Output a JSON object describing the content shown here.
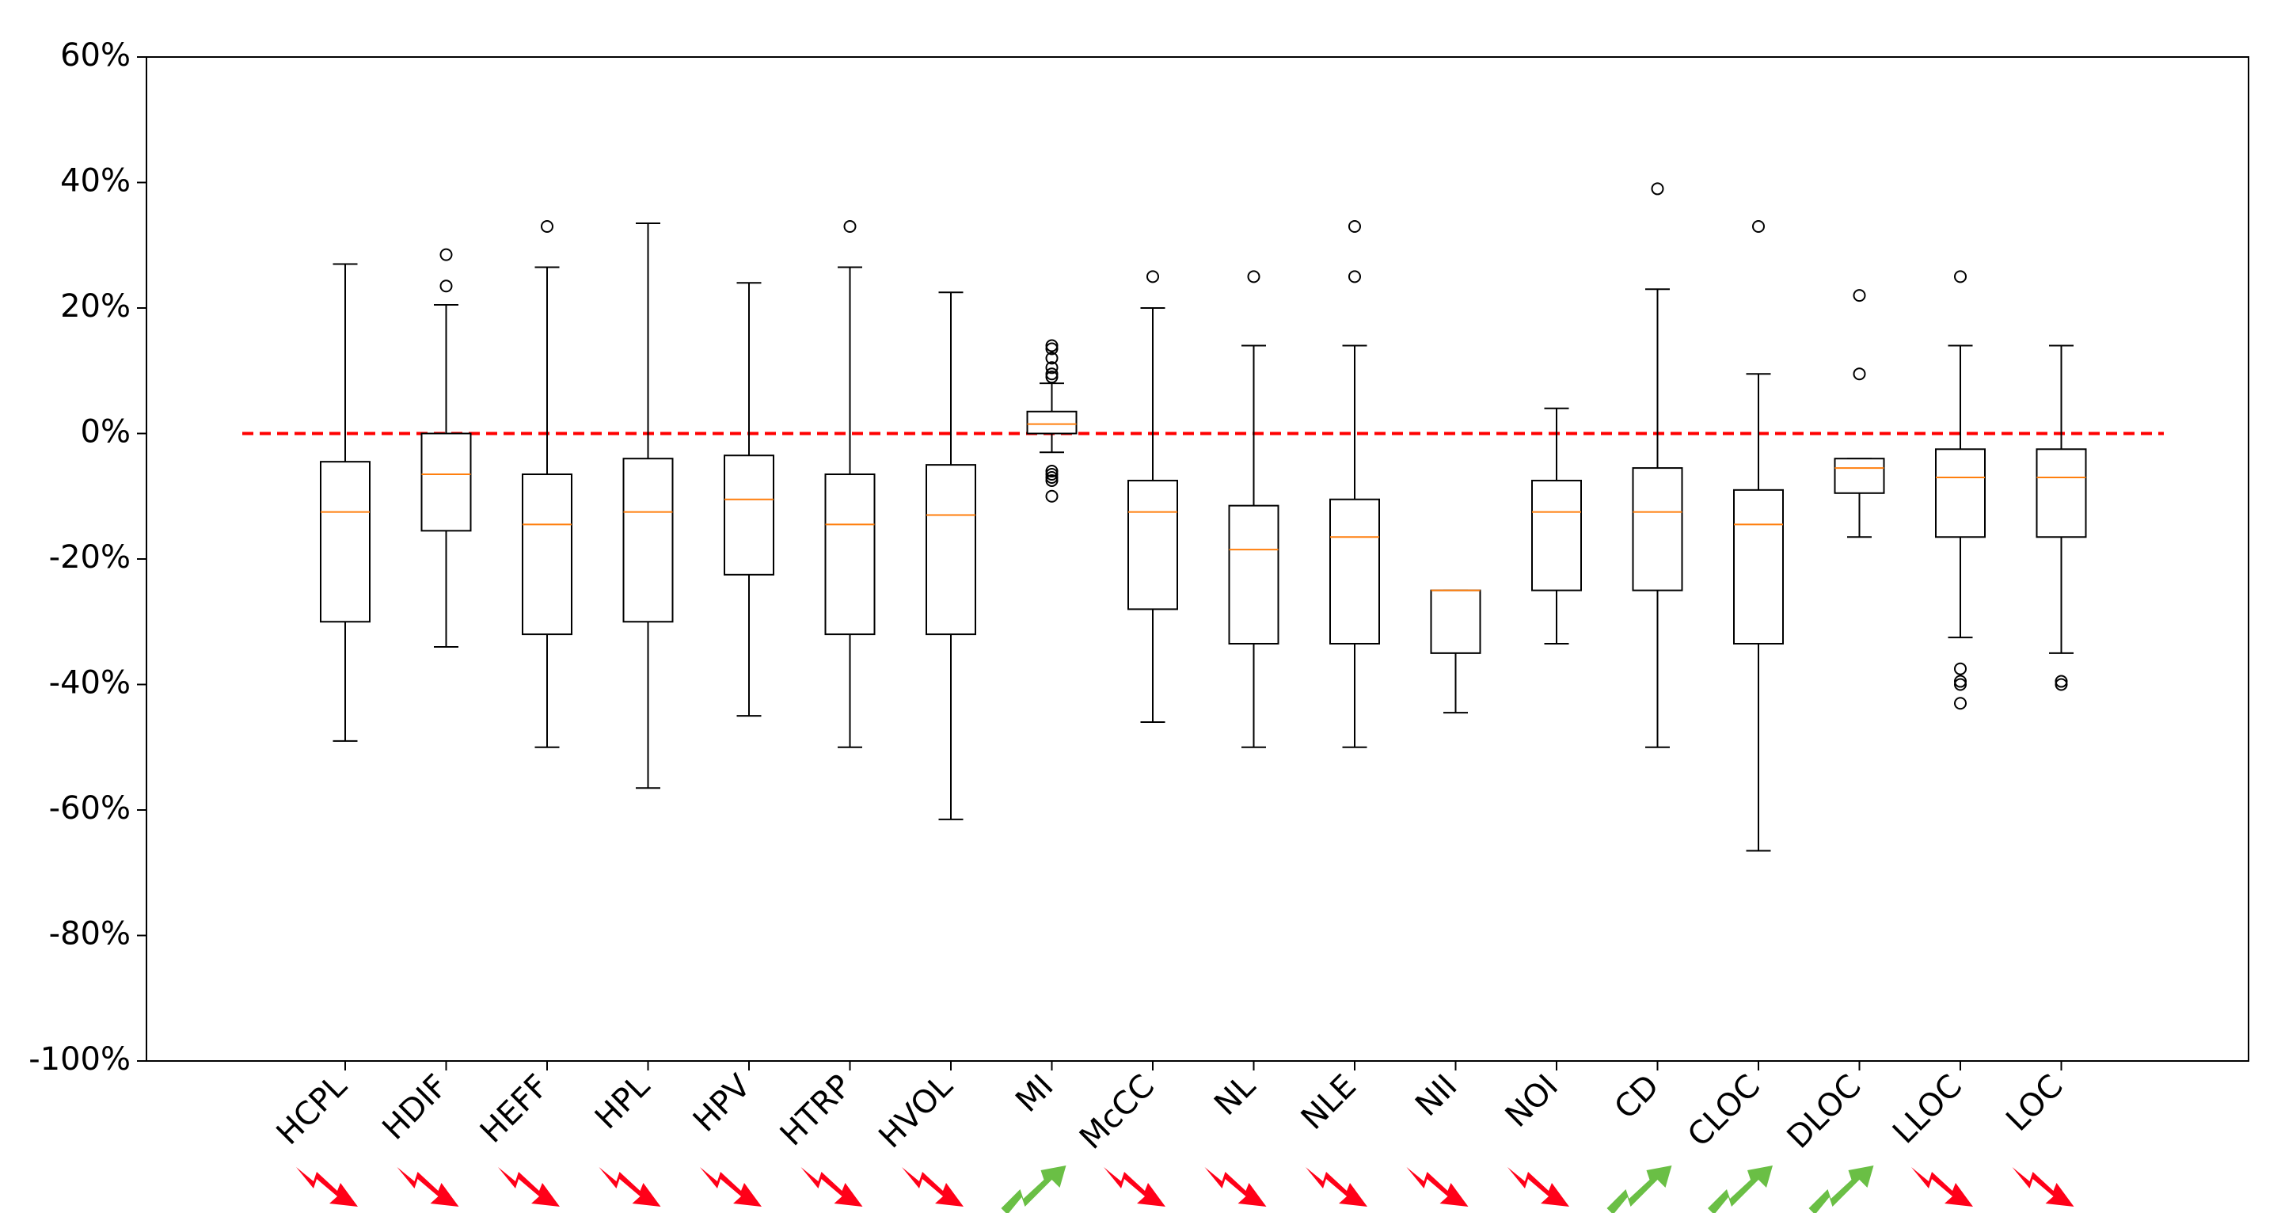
{
  "chart_data": {
    "type": "boxplot",
    "title": "",
    "xlabel": "",
    "ylabel": "",
    "ylim": [
      -100,
      60
    ],
    "yticks": [
      60,
      40,
      20,
      0,
      -20,
      -40,
      -60,
      -80,
      -100
    ],
    "ytick_labels": [
      "60%",
      "40%",
      "20%",
      "0%",
      "-20%",
      "-40%",
      "-60%",
      "-80%",
      "-100%"
    ],
    "reference_line": {
      "value": 0,
      "color": "#ff0000",
      "style": "dashed"
    },
    "median_color": "#ff7f0e",
    "up_color": "#6abf45",
    "down_color": "#ff0018",
    "categories": [
      "HCPL",
      "HDIF",
      "HEFF",
      "HPL",
      "HPV",
      "HTRP",
      "HVOL",
      "MI",
      "McCC",
      "NL",
      "NLE",
      "NII",
      "NOI",
      "CD",
      "CLOC",
      "DLOC",
      "LLOC",
      "LOC"
    ],
    "trend": [
      "down",
      "down",
      "down",
      "down",
      "down",
      "down",
      "down",
      "up",
      "down",
      "down",
      "down",
      "down",
      "down",
      "up",
      "up",
      "up",
      "down",
      "down"
    ],
    "boxes": [
      {
        "label": "HCPL",
        "whislo": -49,
        "q1": -30,
        "med": -12.5,
        "q3": -4.5,
        "whishi": 27,
        "fliers": []
      },
      {
        "label": "HDIF",
        "whislo": -34,
        "q1": -15.5,
        "med": -6.5,
        "q3": 0,
        "whishi": 20.5,
        "fliers": [
          23.5,
          28.5
        ]
      },
      {
        "label": "HEFF",
        "whislo": -50,
        "q1": -32,
        "med": -14.5,
        "q3": -6.5,
        "whishi": 26.5,
        "fliers": [
          33
        ]
      },
      {
        "label": "HPL",
        "whislo": -56.5,
        "q1": -30,
        "med": -12.5,
        "q3": -4,
        "whishi": 33.5,
        "fliers": []
      },
      {
        "label": "HPV",
        "whislo": -45,
        "q1": -22.5,
        "med": -10.5,
        "q3": -3.5,
        "whishi": 24,
        "fliers": []
      },
      {
        "label": "HTRP",
        "whislo": -50,
        "q1": -32,
        "med": -14.5,
        "q3": -6.5,
        "whishi": 26.5,
        "fliers": [
          33
        ]
      },
      {
        "label": "HVOL",
        "whislo": -61.5,
        "q1": -32,
        "med": -13,
        "q3": -5,
        "whishi": 22.5,
        "fliers": []
      },
      {
        "label": "MI",
        "whislo": -3,
        "q1": 0,
        "med": 1.5,
        "q3": 3.5,
        "whishi": 8,
        "fliers": [
          14,
          13.5,
          12,
          10.5,
          9.5,
          9,
          -6,
          -6.5,
          -7,
          -7.5,
          -10
        ]
      },
      {
        "label": "McCC",
        "whislo": -46,
        "q1": -28,
        "med": -12.5,
        "q3": -7.5,
        "whishi": 20,
        "fliers": [
          25
        ]
      },
      {
        "label": "NL",
        "whislo": -50,
        "q1": -33.5,
        "med": -18.5,
        "q3": -11.5,
        "whishi": 14,
        "fliers": [
          25
        ]
      },
      {
        "label": "NLE",
        "whislo": -50,
        "q1": -33.5,
        "med": -16.5,
        "q3": -10.5,
        "whishi": 14,
        "fliers": [
          25,
          33
        ]
      },
      {
        "label": "NII",
        "whislo": -44.5,
        "q1": -35,
        "med": -25,
        "q3": -25,
        "whishi": -25,
        "fliers": []
      },
      {
        "label": "NOI",
        "whislo": -33.5,
        "q1": -25,
        "med": -12.5,
        "q3": -7.5,
        "whishi": 4,
        "fliers": []
      },
      {
        "label": "CD",
        "whislo": -50,
        "q1": -25,
        "med": -12.5,
        "q3": -5.5,
        "whishi": 23,
        "fliers": [
          39
        ]
      },
      {
        "label": "CLOC",
        "whislo": -66.5,
        "q1": -33.5,
        "med": -14.5,
        "q3": -9,
        "whishi": 9.5,
        "fliers": [
          33
        ]
      },
      {
        "label": "DLOC",
        "whislo": -16.5,
        "q1": -9.5,
        "med": -5.5,
        "q3": -4,
        "whishi": -4,
        "fliers": [
          9.5,
          22
        ]
      },
      {
        "label": "LLOC",
        "whislo": -32.5,
        "q1": -16.5,
        "med": -7,
        "q3": -2.5,
        "whishi": 14,
        "fliers": [
          25,
          -37.5,
          -39.5,
          -40,
          -43
        ]
      },
      {
        "label": "LOC",
        "whislo": -35,
        "q1": -16.5,
        "med": -7,
        "q3": -2.5,
        "whishi": 14,
        "fliers": [
          -39.5,
          -40
        ]
      }
    ]
  }
}
